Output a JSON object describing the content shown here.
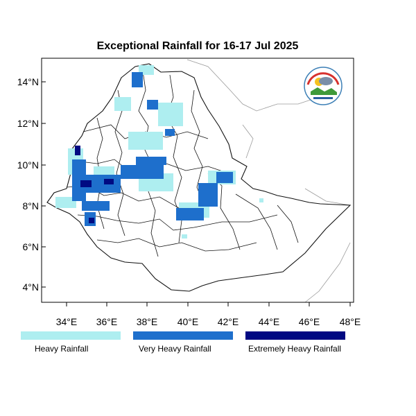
{
  "title": "Exceptional Rainfall for 16-17 Jul 2025",
  "axes": {
    "lat_labels": [
      "14°N",
      "12°N",
      "10°N",
      "8°N",
      "6°N",
      "4°N"
    ],
    "lon_labels": [
      "34°E",
      "36°E",
      "38°E",
      "40°E",
      "42°E",
      "44°E",
      "46°E",
      "48°E"
    ]
  },
  "legend": {
    "items": [
      {
        "label": "Heavy Rainfall",
        "color": "#aeeef0"
      },
      {
        "label": "Very Heavy Rainfall",
        "color": "#1e6fcc"
      },
      {
        "label": "Extremely Heavy Rainfall",
        "color": "#000a82"
      }
    ]
  },
  "logo": {
    "name": "agency-logo"
  }
}
